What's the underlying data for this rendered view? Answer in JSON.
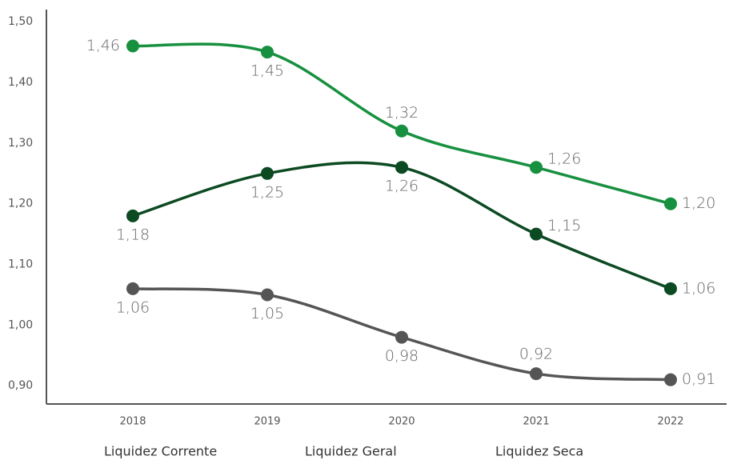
{
  "chart_data": {
    "type": "line",
    "categories": [
      "2018",
      "2019",
      "2020",
      "2021",
      "2022"
    ],
    "series": [
      {
        "name": "Liquidez Corrente",
        "color": "#17903f",
        "values": [
          1.46,
          1.45,
          1.32,
          1.26,
          1.2
        ],
        "value_labels": [
          "1,46",
          "1,45",
          "1,32",
          "1,26",
          "1,20"
        ]
      },
      {
        "name": "Liquidez Geral",
        "color": "#0c4a22",
        "values": [
          1.18,
          1.25,
          1.26,
          1.15,
          1.06
        ],
        "value_labels": [
          "1,18",
          "1,25",
          "1,26",
          "1,15",
          "1,06"
        ]
      },
      {
        "name": "Liquidez Seca",
        "color": "#555555",
        "values": [
          1.06,
          1.05,
          0.98,
          0.92,
          0.91
        ],
        "value_labels": [
          "1,06",
          "1,05",
          "0,98",
          "0,92",
          "0,91"
        ]
      }
    ],
    "ylim": [
      0.87,
      1.52
    ],
    "yticks": [
      {
        "value": 0.9,
        "label": "0,90"
      },
      {
        "value": 1.0,
        "label": "1,00"
      },
      {
        "value": 1.1,
        "label": "1,10"
      },
      {
        "value": 1.2,
        "label": "1,20"
      },
      {
        "value": 1.3,
        "label": "1,30"
      },
      {
        "value": 1.4,
        "label": "1,40"
      },
      {
        "value": 1.5,
        "label": "1,50"
      }
    ]
  }
}
